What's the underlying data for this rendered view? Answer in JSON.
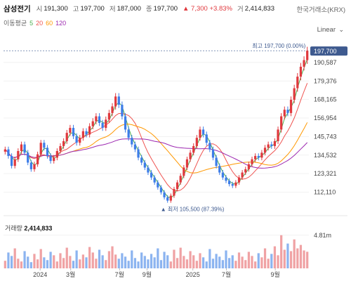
{
  "header": {
    "name": "삼성전기",
    "open_label": "시",
    "open": "191,300",
    "high_label": "고",
    "high": "197,700",
    "low_label": "저",
    "low": "187,000",
    "close_label": "종",
    "close": "197,700",
    "change": "▲ 7,300 +3.83%",
    "volume_label": "거",
    "volume": "2,414,833",
    "exchange": "한국거래소(KRX)"
  },
  "ma": {
    "label": "이동평균",
    "p5": "5",
    "p20": "20",
    "p60": "60",
    "p120": "120"
  },
  "scale_selector": {
    "value": "Linear",
    "chevron": "⌄"
  },
  "volume_panel": {
    "label": "거래량",
    "value": "2,414,833"
  },
  "colors": {
    "up": "#e0393e",
    "down": "#3d7de8",
    "ma5": "#4caf50",
    "ma20": "#ef5350",
    "ma60": "#ff9800",
    "ma120": "#9c27b0",
    "current": "#3e5a8f"
  },
  "chart_data": {
    "type": "candlestick",
    "x_range": [
      "2023-09",
      "2025-09"
    ],
    "price_ticks": [
      "190,587",
      "179,376",
      "168,165",
      "156,954",
      "145,743",
      "134,532",
      "123,321",
      "112,110"
    ],
    "price_range": [
      103000,
      205000
    ],
    "time_ticks": [
      "2024",
      "3월",
      "7월",
      "9월",
      "2025",
      "7월",
      "9월"
    ],
    "current_price": "197,700",
    "max_label": "최고 197,700 (0.00%)",
    "min_label": "▲ 최저 105,500 (87.39%)",
    "volume_max_label": "4.81m",
    "volume_range": [
      0,
      5300000
    ],
    "close_series": [
      138000,
      134000,
      128000,
      132000,
      137000,
      141000,
      136000,
      130000,
      126000,
      129000,
      135000,
      142000,
      139000,
      134000,
      131000,
      133000,
      137000,
      140000,
      143000,
      148000,
      151000,
      146000,
      142000,
      145000,
      149000,
      147000,
      152000,
      155000,
      158000,
      154000,
      151000,
      156000,
      160000,
      164000,
      170000,
      165000,
      158000,
      150000,
      145000,
      141000,
      138000,
      133000,
      130000,
      127000,
      124000,
      121000,
      118000,
      115000,
      112000,
      109000,
      107000,
      110000,
      114000,
      118000,
      122000,
      127000,
      132000,
      136000,
      140000,
      145000,
      150000,
      147000,
      142000,
      138000,
      133000,
      128000,
      124000,
      121000,
      119000,
      117000,
      116000,
      118000,
      121000,
      124000,
      126000,
      129000,
      132000,
      134000,
      133000,
      136000,
      139000,
      141000,
      140000,
      143000,
      150000,
      158000,
      162000,
      160000,
      168000,
      175000,
      182000,
      188000,
      192000,
      197700
    ],
    "volumes": [
      1.1,
      2.3,
      1.8,
      2.9,
      1.4,
      1.0,
      2.5,
      1.7,
      0.9,
      2.1,
      1.3,
      2.8,
      1.6,
      1.2,
      2.4,
      1.9,
      1.0,
      2.2,
      1.5,
      3.0,
      1.8,
      1.1,
      2.6,
      1.3,
      2.0,
      1.6,
      3.1,
      2.3,
      1.4,
      2.7,
      1.9,
      1.2,
      2.5,
      3.2,
      2.0,
      1.4,
      2.2,
      1.7,
      1.1,
      2.6,
      1.5,
      1.0,
      2.3,
      1.8,
      1.3,
      2.1,
      1.6,
      2.9,
      1.2,
      2.4,
      1.9,
      1.0,
      2.7,
      1.5,
      3.0,
      1.8,
      1.3,
      2.5,
      1.9,
      1.1,
      2.2,
      1.6,
      1.0,
      2.8,
      1.4,
      2.1,
      1.7,
      1.2,
      2.6,
      1.5,
      1.9,
      1.1,
      2.3,
      1.7,
      1.2,
      2.4,
      1.8,
      1.0,
      2.2,
      1.6,
      2.9,
      1.4,
      2.1,
      3.2,
      1.9,
      4.81,
      2.7,
      3.6,
      2.5,
      4.2,
      2.9,
      3.4,
      2.6,
      2.41
    ]
  }
}
